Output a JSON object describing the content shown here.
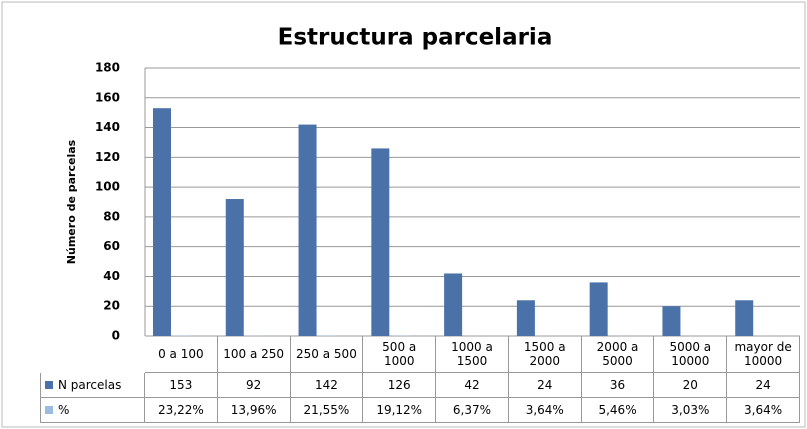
{
  "chart_data": {
    "type": "bar",
    "title": "Estructura parcelaria",
    "y_label": "Número de parcelas",
    "categories": [
      "0 a 100",
      "100 a 250",
      "250 a 500",
      "500 a 1000",
      "1000 a 1500",
      "1500 a 2000",
      "2000 a 5000",
      "5000 a 10000",
      "mayor de 10000"
    ],
    "series": [
      {
        "name": "N parcelas",
        "color": "#4a72a8",
        "values": [
          153,
          92,
          142,
          126,
          42,
          24,
          36,
          20,
          24
        ]
      },
      {
        "name": "%",
        "color": "#9bbbe0",
        "values": [
          0.2322,
          0.1396,
          0.2155,
          0.1912,
          0.0637,
          0.0364,
          0.0546,
          0.0303,
          0.0364
        ],
        "value_labels": [
          "23,22%",
          "13,96%",
          "21,55%",
          "19,12%",
          "6,37%",
          "3,64%",
          "5,46%",
          "3,03%",
          "3,64%"
        ]
      }
    ],
    "ylim": [
      0,
      180
    ],
    "yticks": [
      0,
      20,
      40,
      60,
      80,
      100,
      120,
      140,
      160,
      180
    ],
    "grid": true
  }
}
